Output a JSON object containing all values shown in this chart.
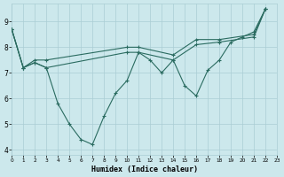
{
  "background_color": "#cce8ec",
  "grid_color": "#aacdd4",
  "line_color": "#2a6b60",
  "xlabel": "Humidex (Indice chaleur)",
  "xlim": [
    0,
    23
  ],
  "ylim": [
    3.8,
    9.7
  ],
  "yticks": [
    4,
    5,
    6,
    7,
    8,
    9
  ],
  "xticks": [
    0,
    1,
    2,
    3,
    4,
    5,
    6,
    7,
    8,
    9,
    10,
    11,
    12,
    13,
    14,
    15,
    16,
    17,
    18,
    19,
    20,
    21,
    22,
    23
  ],
  "line1_x": [
    0,
    1,
    2,
    3,
    4,
    5,
    6,
    7,
    8,
    9,
    10,
    11,
    12,
    13,
    14,
    15,
    16,
    17,
    18,
    19,
    20,
    21,
    22
  ],
  "line1_y": [
    8.7,
    7.2,
    7.4,
    7.2,
    5.8,
    5.0,
    4.4,
    4.2,
    5.3,
    6.2,
    6.7,
    7.8,
    7.5,
    7.0,
    7.5,
    6.5,
    6.1,
    7.1,
    7.5,
    8.2,
    8.4,
    8.6,
    9.5
  ],
  "line2_x": [
    0,
    1,
    2,
    3,
    10,
    11,
    14,
    16,
    18,
    21,
    22
  ],
  "line2_y": [
    8.7,
    7.2,
    7.5,
    7.5,
    8.0,
    8.0,
    7.7,
    8.3,
    8.3,
    8.5,
    9.5
  ],
  "line3_x": [
    0,
    1,
    2,
    3,
    10,
    11,
    14,
    16,
    18,
    21,
    22
  ],
  "line3_y": [
    8.7,
    7.2,
    7.4,
    7.2,
    7.8,
    7.8,
    7.5,
    8.1,
    8.2,
    8.4,
    9.5
  ]
}
